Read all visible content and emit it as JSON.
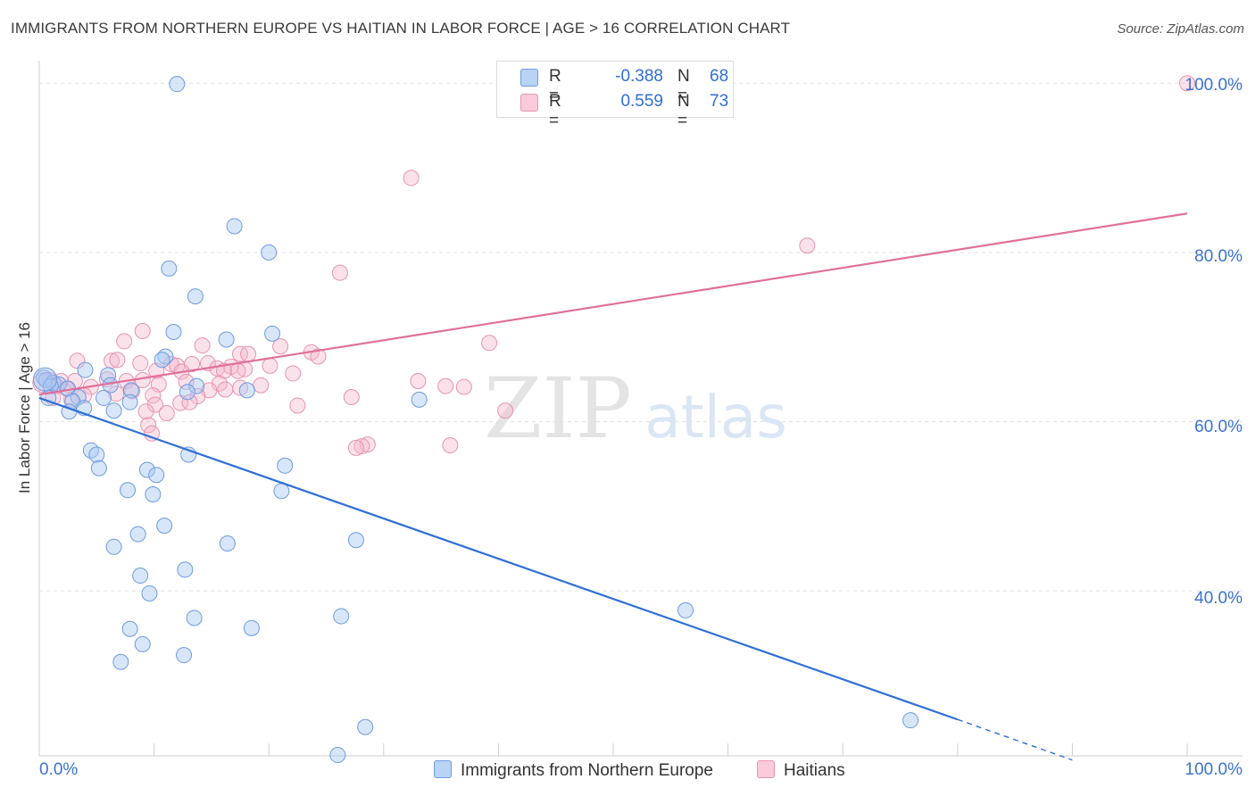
{
  "title": "IMMIGRANTS FROM NORTHERN EUROPE VS HAITIAN IN LABOR FORCE | AGE > 16 CORRELATION CHART",
  "source": "Source: ZipAtlas.com",
  "watermark": {
    "zip": "ZIP",
    "atlas": "atlas"
  },
  "legend_top": [
    {
      "r_label": "R =",
      "r_value": "-0.388",
      "n_label": "N =",
      "n_value": "68"
    },
    {
      "r_label": "R =",
      "r_value": "0.559",
      "n_label": "N =",
      "n_value": "73"
    }
  ],
  "legend_bottom": [
    "Immigrants from Northern Europe",
    "Haitians"
  ],
  "colors": {
    "blue": "#2f6fd6",
    "blue_fill": "#a9c8f2",
    "pink": "#e0709a",
    "pink_fill": "#f6b6cb"
  },
  "chart_data": {
    "type": "scatter",
    "title": "IMMIGRANTS FROM NORTHERN EUROPE VS HAITIAN IN LABOR FORCE | AGE > 16 CORRELATION CHART",
    "xlabel": "",
    "ylabel": "In Labor Force | Age > 16",
    "xlim": [
      0,
      100
    ],
    "ylim": [
      20.5,
      101.5
    ],
    "x_tick_labels": [
      "0.0%",
      "100.0%"
    ],
    "y_ticks": [
      40,
      60,
      80,
      100
    ],
    "y_tick_labels": [
      "40.0%",
      "60.0%",
      "80.0%",
      "100.0%"
    ],
    "grid": true,
    "series": [
      {
        "name": "Immigrants from Northern Europe",
        "color": "#2f6fd6",
        "r": -0.388,
        "n": 68,
        "trend": {
          "x0": 0,
          "y0": 62.8,
          "x1": 80,
          "y1": 24.8,
          "dash_to_x": 90,
          "dash_to_y": 20.0
        },
        "points": [
          [
            12.0,
            99.9
          ],
          [
            17.0,
            83.1
          ],
          [
            20.0,
            80.0
          ],
          [
            11.3,
            78.1
          ],
          [
            13.6,
            74.8
          ],
          [
            11.7,
            70.6
          ],
          [
            20.3,
            70.4
          ],
          [
            16.3,
            69.7
          ],
          [
            11.0,
            67.7
          ],
          [
            10.7,
            67.3
          ],
          [
            4.0,
            66.1
          ],
          [
            6.0,
            65.5
          ],
          [
            0.4,
            65.2
          ],
          [
            0.6,
            64.9
          ],
          [
            1.2,
            64.6
          ],
          [
            1.7,
            64.4
          ],
          [
            1.0,
            64.2
          ],
          [
            2.5,
            63.9
          ],
          [
            6.2,
            64.3
          ],
          [
            8.0,
            63.7
          ],
          [
            13.7,
            64.2
          ],
          [
            12.9,
            63.5
          ],
          [
            18.1,
            63.7
          ],
          [
            3.4,
            62.9
          ],
          [
            5.6,
            62.8
          ],
          [
            0.8,
            62.8
          ],
          [
            2.9,
            62.4
          ],
          [
            7.9,
            62.3
          ],
          [
            33.1,
            62.6
          ],
          [
            3.9,
            61.6
          ],
          [
            2.6,
            61.2
          ],
          [
            6.5,
            61.3
          ],
          [
            4.5,
            56.6
          ],
          [
            5.0,
            56.1
          ],
          [
            13.0,
            56.1
          ],
          [
            5.2,
            54.5
          ],
          [
            9.4,
            54.3
          ],
          [
            10.2,
            53.7
          ],
          [
            21.4,
            54.8
          ],
          [
            7.7,
            51.9
          ],
          [
            9.9,
            51.4
          ],
          [
            21.1,
            51.8
          ],
          [
            10.9,
            47.7
          ],
          [
            8.6,
            46.7
          ],
          [
            27.6,
            46.0
          ],
          [
            16.4,
            45.6
          ],
          [
            6.5,
            45.2
          ],
          [
            12.7,
            42.5
          ],
          [
            8.8,
            41.8
          ],
          [
            9.6,
            39.7
          ],
          [
            56.3,
            37.7
          ],
          [
            26.3,
            37.0
          ],
          [
            13.5,
            36.8
          ],
          [
            18.5,
            35.6
          ],
          [
            7.9,
            35.5
          ],
          [
            9.0,
            33.7
          ],
          [
            12.6,
            32.4
          ],
          [
            7.1,
            31.6
          ],
          [
            28.4,
            23.9
          ],
          [
            75.9,
            24.7
          ],
          [
            26.0,
            20.6
          ]
        ]
      },
      {
        "name": "Haitians",
        "color": "#e0709a",
        "r": 0.559,
        "n": 73,
        "trend": {
          "x0": 0,
          "y0": 63.2,
          "x1": 100,
          "y1": 84.6
        },
        "points": [
          [
            100.0,
            100.0
          ],
          [
            32.4,
            88.8
          ],
          [
            66.9,
            80.8
          ],
          [
            26.2,
            77.6
          ],
          [
            9.0,
            70.7
          ],
          [
            7.4,
            69.5
          ],
          [
            14.2,
            69.0
          ],
          [
            21.0,
            68.9
          ],
          [
            23.7,
            68.2
          ],
          [
            39.2,
            69.3
          ],
          [
            17.5,
            68.0
          ],
          [
            18.2,
            68.0
          ],
          [
            24.3,
            67.7
          ],
          [
            3.3,
            67.2
          ],
          [
            6.3,
            67.2
          ],
          [
            6.8,
            67.3
          ],
          [
            8.8,
            66.9
          ],
          [
            11.5,
            66.8
          ],
          [
            12.0,
            66.6
          ],
          [
            13.3,
            66.8
          ],
          [
            14.7,
            66.9
          ],
          [
            16.7,
            66.5
          ],
          [
            17.9,
            66.2
          ],
          [
            20.1,
            66.6
          ],
          [
            15.5,
            66.3
          ],
          [
            16.1,
            66.0
          ],
          [
            10.2,
            66.0
          ],
          [
            12.4,
            65.9
          ],
          [
            22.1,
            65.7
          ],
          [
            17.3,
            66.0
          ],
          [
            0.9,
            64.9
          ],
          [
            1.9,
            64.8
          ],
          [
            3.1,
            64.8
          ],
          [
            5.9,
            65.0
          ],
          [
            7.6,
            64.8
          ],
          [
            9.0,
            64.9
          ],
          [
            10.4,
            64.4
          ],
          [
            12.8,
            64.7
          ],
          [
            15.7,
            64.5
          ],
          [
            19.3,
            64.3
          ],
          [
            33.0,
            64.8
          ],
          [
            35.4,
            64.2
          ],
          [
            37.0,
            64.1
          ],
          [
            1.5,
            64.2
          ],
          [
            2.4,
            63.9
          ],
          [
            4.5,
            64.1
          ],
          [
            8.1,
            63.6
          ],
          [
            14.8,
            63.7
          ],
          [
            16.2,
            63.8
          ],
          [
            3.9,
            63.1
          ],
          [
            6.7,
            63.3
          ],
          [
            9.9,
            63.1
          ],
          [
            13.8,
            63.0
          ],
          [
            17.5,
            64.0
          ],
          [
            27.2,
            62.9
          ],
          [
            1.2,
            62.8
          ],
          [
            2.8,
            62.6
          ],
          [
            10.1,
            62.0
          ],
          [
            12.3,
            62.2
          ],
          [
            13.1,
            62.3
          ],
          [
            22.5,
            61.9
          ],
          [
            40.6,
            61.3
          ],
          [
            9.3,
            61.2
          ],
          [
            11.1,
            61.0
          ],
          [
            9.5,
            59.6
          ],
          [
            9.8,
            58.6
          ],
          [
            28.6,
            57.3
          ],
          [
            28.1,
            57.1
          ],
          [
            27.6,
            56.9
          ],
          [
            35.8,
            57.2
          ]
        ]
      }
    ]
  }
}
